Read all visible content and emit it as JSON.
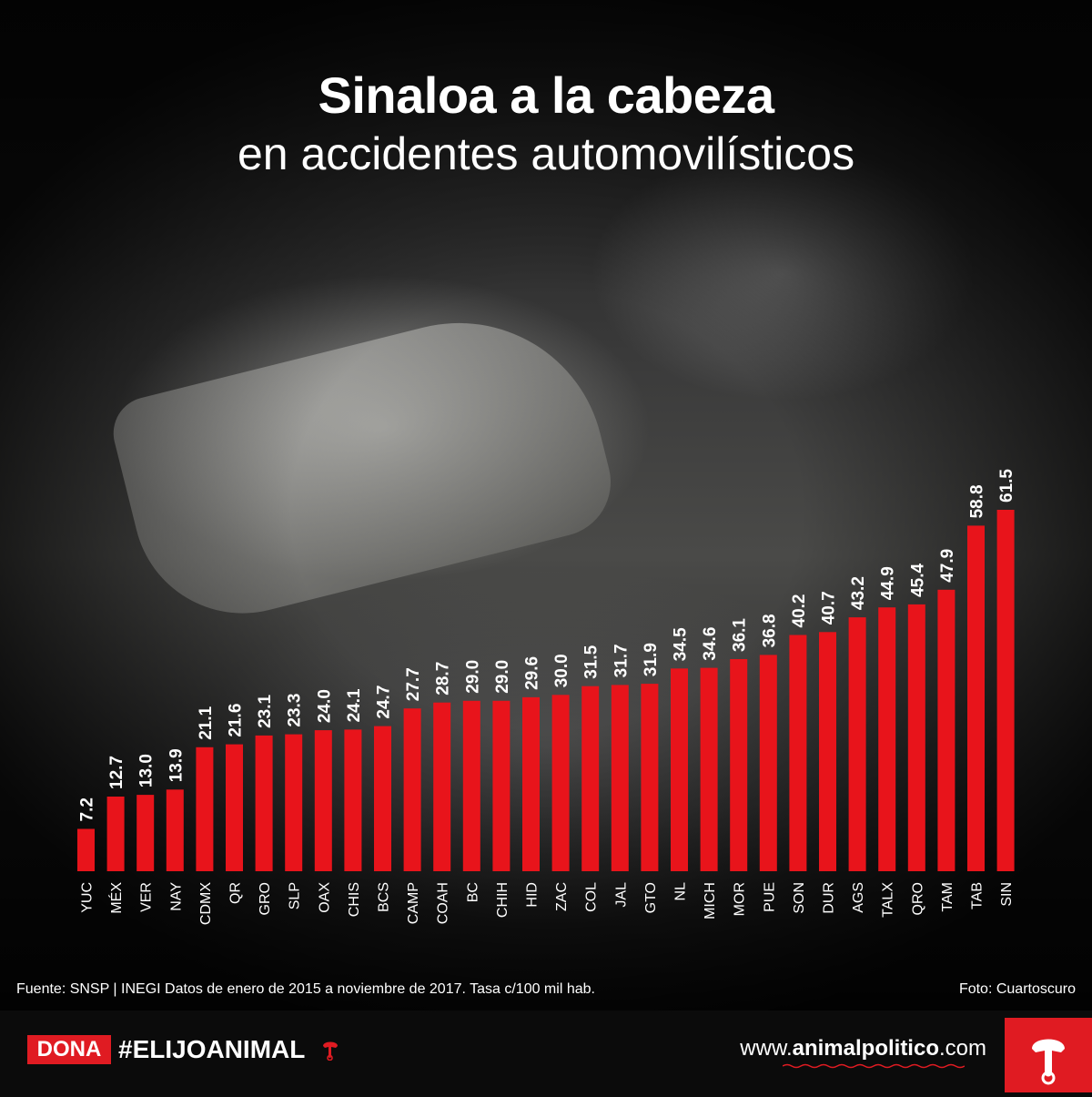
{
  "header": {
    "title": "Sinaloa a la cabeza",
    "subtitle": "en accidentes automovilísticos"
  },
  "chart_data": {
    "type": "bar",
    "title": "Sinaloa a la cabeza",
    "subtitle": "en accidentes automovilísticos",
    "categories": [
      "YUC",
      "MÉX",
      "VER",
      "NAY",
      "CDMX",
      "QR",
      "GRO",
      "SLP",
      "OAX",
      "CHIS",
      "BCS",
      "CAMP",
      "COAH",
      "BC",
      "CHIH",
      "HID",
      "ZAC",
      "COL",
      "JAL",
      "GTO",
      "NL",
      "MICH",
      "MOR",
      "PUE",
      "SON",
      "DUR",
      "AGS",
      "TALX",
      "QRO",
      "TAM",
      "TAB",
      "SIN"
    ],
    "values": [
      7.2,
      12.7,
      13.0,
      13.9,
      21.1,
      21.6,
      23.1,
      23.3,
      24.0,
      24.1,
      24.7,
      27.7,
      28.7,
      29.0,
      29.0,
      29.6,
      30.0,
      31.5,
      31.7,
      31.9,
      34.5,
      34.6,
      36.1,
      36.8,
      40.2,
      40.7,
      43.2,
      44.9,
      45.4,
      47.9,
      58.8,
      61.5
    ],
    "value_labels": [
      "7.2",
      "12.7",
      "13.0",
      "13.9",
      "21.1",
      "21.6",
      "23.1",
      "23.3",
      "24.0",
      "24.1",
      "24.7",
      "27.7",
      "28.7",
      "29.0",
      "29.0",
      "29.6",
      "30.0",
      "31.5",
      "31.7",
      "31.9",
      "34.5",
      "34.6",
      "36.1",
      "36.8",
      "40.2",
      "40.7",
      "43.2",
      "44.9",
      "45.4",
      "47.9",
      "58.8",
      "61.5"
    ],
    "xlabel": "",
    "ylabel": "",
    "ylim": [
      0,
      61.5
    ],
    "grid": false,
    "bar_color": "#e8141b"
  },
  "footnotes": {
    "source": "Fuente: SNSP | INEGI Datos de enero de 2015 a noviembre de 2017. Tasa c/100 mil hab.",
    "credit": "Foto: Cuartoscuro"
  },
  "footer": {
    "donate_label": "DONA",
    "hashtag": "#ELIJOANIMAL",
    "site_prefix": "www.",
    "site_brand": "animalpolitico",
    "site_suffix": ".com"
  },
  "colors": {
    "accent": "#e01b22",
    "background": "#0b0b0b"
  },
  "icons": [
    "animal-logo-icon"
  ]
}
